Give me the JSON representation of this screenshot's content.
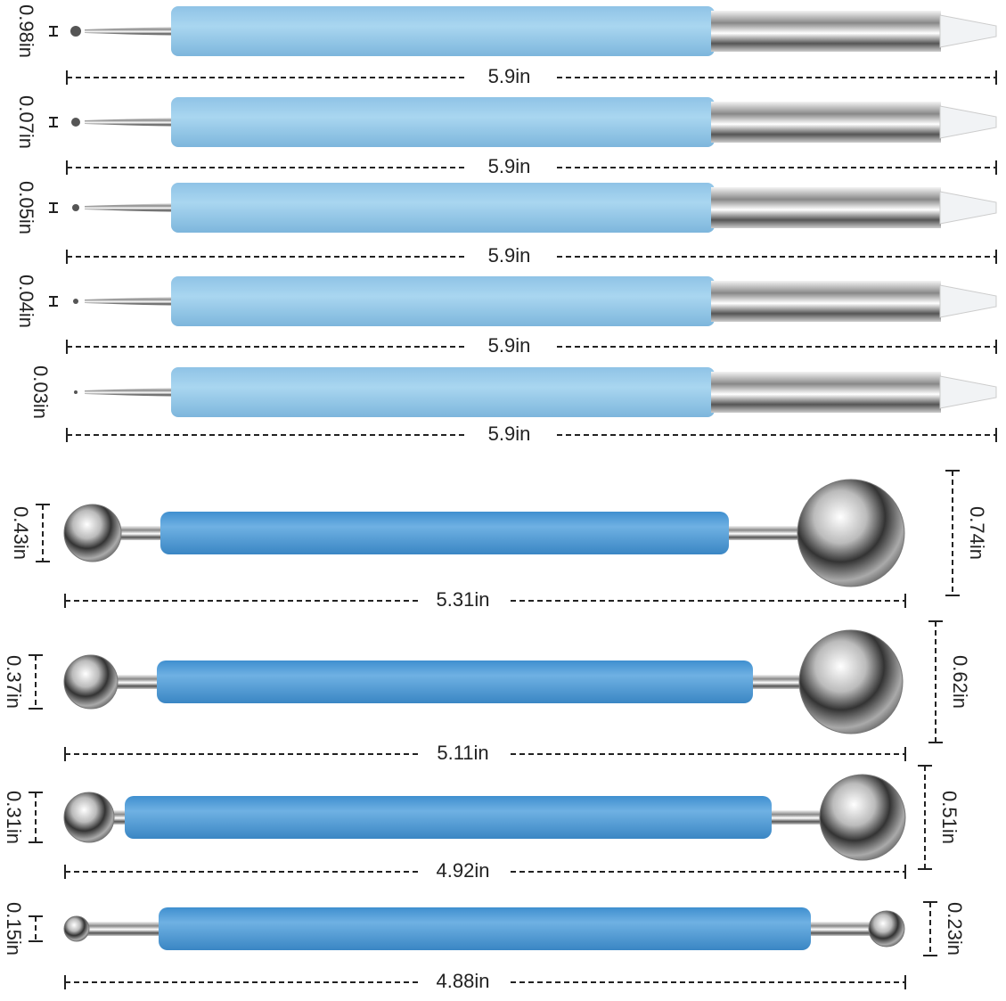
{
  "dotting_tools": [
    {
      "tip": "0.98in",
      "length": "5.9in"
    },
    {
      "tip": "0.07in",
      "length": "5.9in"
    },
    {
      "tip": "0.05in",
      "length": "5.9in"
    },
    {
      "tip": "0.04in",
      "length": "5.9in"
    },
    {
      "tip": "0.03in",
      "length": "5.9in"
    }
  ],
  "ball_tools": [
    {
      "left": "0.43in",
      "right": "0.74in",
      "length": "5.31in"
    },
    {
      "left": "0.37in",
      "right": "0.62in",
      "length": "5.11in"
    },
    {
      "left": "0.31in",
      "right": "0.51in",
      "length": "4.92in"
    },
    {
      "left": "0.15in",
      "right": "0.23in",
      "length": "4.88in"
    }
  ]
}
